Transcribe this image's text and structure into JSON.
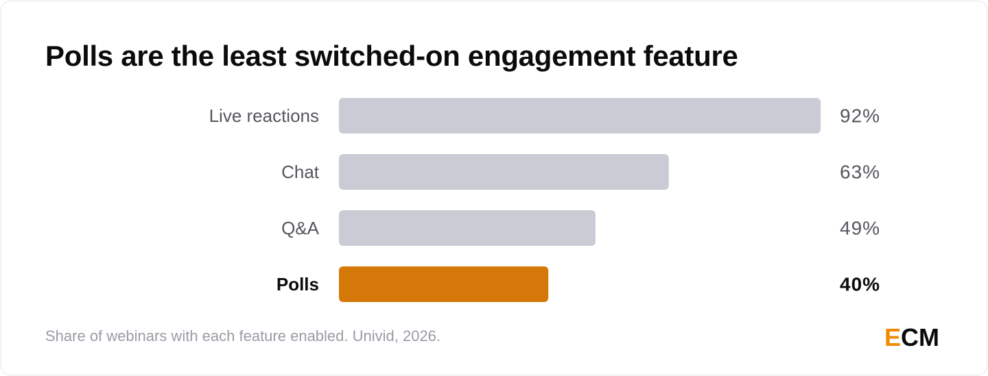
{
  "chart_data": {
    "type": "bar",
    "orientation": "horizontal",
    "title": "Polls are the least switched‑on engagement feature",
    "categories": [
      "Live reactions",
      "Chat",
      "Q&A",
      "Polls"
    ],
    "values": [
      92,
      63,
      49,
      40
    ],
    "value_labels": [
      "92%",
      "63%",
      "49%",
      "40%"
    ],
    "highlight": "Polls",
    "xlim": [
      0,
      92
    ],
    "colors": {
      "default": "#c9ccd4",
      "highlight": "#d4780a"
    },
    "grid": false
  },
  "footer": {
    "source": "Share of webinars with each feature enabled. Univid, 2026."
  },
  "logo": {
    "first": "E",
    "rest": "CM",
    "accent_color": "#f08a00"
  }
}
